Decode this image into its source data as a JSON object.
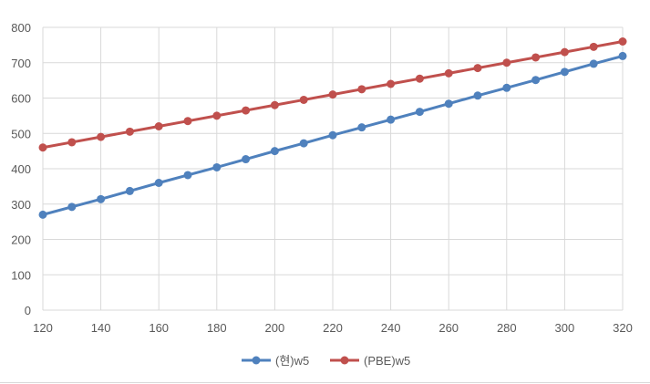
{
  "chart_data": {
    "type": "line",
    "title": "",
    "xlabel": "",
    "ylabel": "",
    "xlim": [
      120,
      320
    ],
    "ylim": [
      0,
      800
    ],
    "x_ticks": [
      120,
      140,
      160,
      180,
      200,
      220,
      240,
      260,
      280,
      300,
      320
    ],
    "y_ticks": [
      0,
      100,
      200,
      300,
      400,
      500,
      600,
      700,
      800
    ],
    "x": [
      120,
      130,
      140,
      150,
      160,
      170,
      180,
      190,
      200,
      210,
      220,
      230,
      240,
      250,
      260,
      270,
      280,
      290,
      300,
      310,
      320
    ],
    "grid": true,
    "legend_position": "bottom",
    "series": [
      {
        "name": "(현)w5",
        "color": "#4f81bd",
        "values": [
          270,
          292,
          314,
          337,
          360,
          382,
          404,
          427,
          450,
          472,
          495,
          517,
          539,
          561,
          584,
          607,
          629,
          651,
          674,
          697,
          719
        ]
      },
      {
        "name": "(PBE)w5",
        "color": "#c0504d",
        "values": [
          460,
          475,
          490,
          505,
          520,
          535,
          550,
          565,
          580,
          595,
          610,
          625,
          640,
          655,
          670,
          685,
          700,
          715,
          730,
          745,
          760
        ]
      }
    ]
  }
}
